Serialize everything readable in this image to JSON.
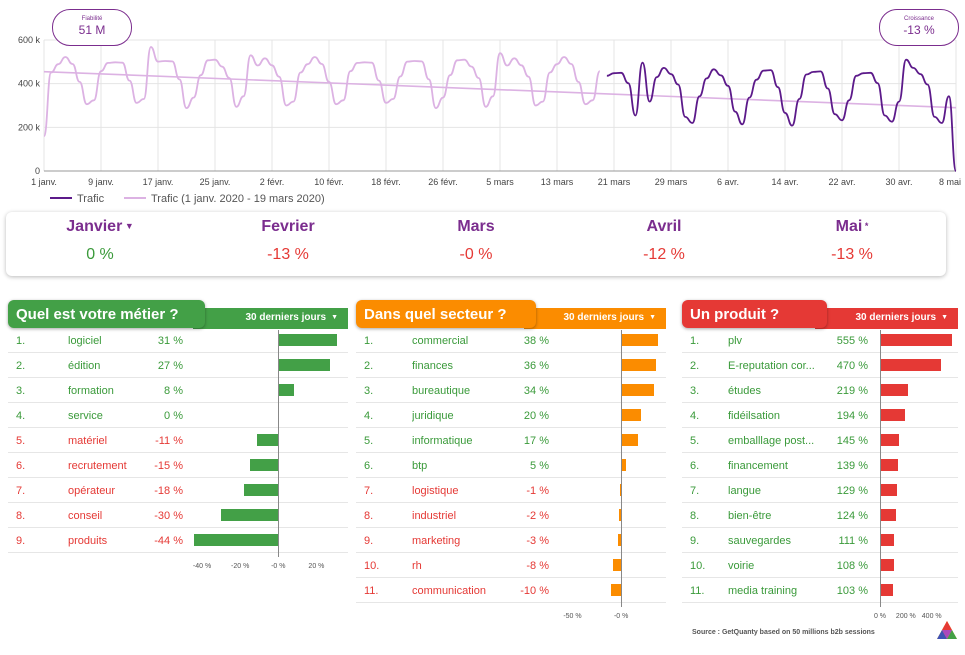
{
  "kpis": {
    "left": {
      "label": "Fiabilité",
      "value": "51 M"
    },
    "right": {
      "label": "Croissance",
      "value": "-13 %"
    }
  },
  "chart_data": {
    "type": "line",
    "title": "",
    "xlabel": "",
    "ylabel": "",
    "ylim": [
      0,
      600000
    ],
    "y_ticks": [
      "0",
      "200 k",
      "400 k",
      "600 k"
    ],
    "x_tick_labels": [
      "1 janv.",
      "9 janv.",
      "17 janv.",
      "25 janv.",
      "2 févr.",
      "10 févr.",
      "18 févr.",
      "26 févr.",
      "5 mars",
      "13 mars",
      "21 mars",
      "29 mars",
      "6 avr.",
      "14 avr.",
      "22 avr.",
      "30 avr.",
      "8 mai"
    ],
    "x_ticks_day_index": [
      0,
      8,
      16,
      24,
      32,
      40,
      48,
      56,
      64,
      72,
      80,
      88,
      96,
      104,
      112,
      120,
      128
    ],
    "legend": [
      "Trafic",
      "Trafic (1 janv. 2020 - 19 mars 2020)"
    ],
    "colors": {
      "current": "#5c1a8a",
      "history": "#dcb2e3",
      "grid": "#e4e4e4"
    },
    "series": [
      {
        "name": "Trafic (1 janv. 2020 - 19 mars 2020)",
        "x_range_days": [
          0,
          78
        ],
        "weekly_profile": [
          330000,
          445000,
          495000,
          510000,
          490000,
          420000,
          300000
        ],
        "peaks": [
          {
            "day": 15,
            "value": 580000
          },
          {
            "day": 29,
            "value": 530000
          },
          {
            "day": 64,
            "value": 540000
          }
        ],
        "start_value": 160000
      },
      {
        "name": "Trafic",
        "x_range_days": [
          79,
          128
        ],
        "weekly_profile": [
          220000,
          330000,
          430000,
          460000,
          450000,
          390000,
          260000
        ],
        "peaks": [
          {
            "day": 84,
            "value": 490000
          },
          {
            "day": 121,
            "value": 510000
          }
        ],
        "end_value": 0
      },
      {
        "name": "trend",
        "x": [
          0,
          128
        ],
        "values": [
          455000,
          290000
        ]
      }
    ]
  },
  "months": [
    {
      "name": "Janvier",
      "value": "0 %",
      "caret": "▼",
      "sign": "pos"
    },
    {
      "name": "Fevrier",
      "value": "-13 %",
      "caret": "",
      "sign": "neg"
    },
    {
      "name": "Mars",
      "value": "-0 %",
      "caret": "",
      "sign": "neg"
    },
    {
      "name": "Avril",
      "value": "-12 %",
      "caret": "",
      "sign": "neg"
    },
    {
      "name": "Mai",
      "value": "-13 %",
      "caret": "*",
      "sign": "neg"
    }
  ],
  "panels": [
    {
      "title": "Quel est votre métier ?",
      "period": "30 derniers jours",
      "caret": "▼",
      "color": "#43a047",
      "axis_min": -50,
      "axis_max": 35,
      "ticks": [
        -40,
        -20,
        0,
        20
      ],
      "tick_labels": [
        "-40 %",
        "-20 %",
        "-0 %",
        "20 %"
      ],
      "rows": [
        {
          "rank": "1.",
          "label": "logiciel",
          "pct": "31 %",
          "value": 31
        },
        {
          "rank": "2.",
          "label": "édition",
          "pct": "27 %",
          "value": 27
        },
        {
          "rank": "3.",
          "label": "formation",
          "pct": "8 %",
          "value": 8
        },
        {
          "rank": "4.",
          "label": "service",
          "pct": "0 %",
          "value": 0
        },
        {
          "rank": "5.",
          "label": "matériel",
          "pct": "-11 %",
          "value": -11
        },
        {
          "rank": "6.",
          "label": "recrutement",
          "pct": "-15 %",
          "value": -15
        },
        {
          "rank": "7.",
          "label": "opérateur",
          "pct": "-18 %",
          "value": -18
        },
        {
          "rank": "8.",
          "label": "conseil",
          "pct": "-30 %",
          "value": -30
        },
        {
          "rank": "9.",
          "label": "produits",
          "pct": "-44 %",
          "value": -44
        }
      ]
    },
    {
      "title": "Dans quel secteur ?",
      "period": "30 derniers jours",
      "caret": "▼",
      "color": "#fb8c00",
      "axis_min": -70,
      "axis_max": 44,
      "ticks": [
        -50,
        0
      ],
      "tick_labels": [
        "-50 %",
        "-0 %"
      ],
      "rows": [
        {
          "rank": "1.",
          "label": "commercial",
          "pct": "38 %",
          "value": 38
        },
        {
          "rank": "2.",
          "label": "finances",
          "pct": "36 %",
          "value": 36
        },
        {
          "rank": "3.",
          "label": "bureautique",
          "pct": "34 %",
          "value": 34
        },
        {
          "rank": "4.",
          "label": "juridique",
          "pct": "20 %",
          "value": 20
        },
        {
          "rank": "5.",
          "label": "informatique",
          "pct": "17 %",
          "value": 17
        },
        {
          "rank": "6.",
          "label": "btp",
          "pct": "5 %",
          "value": 5
        },
        {
          "rank": "7.",
          "label": "logistique",
          "pct": "-1 %",
          "value": -1
        },
        {
          "rank": "8.",
          "label": "industriel",
          "pct": "-2 %",
          "value": -2
        },
        {
          "rank": "9.",
          "label": "marketing",
          "pct": "-3 %",
          "value": -3
        },
        {
          "rank": "10.",
          "label": "rh",
          "pct": "-8 %",
          "value": -8
        },
        {
          "rank": "11.",
          "label": "communication",
          "pct": "-10 %",
          "value": -10
        }
      ]
    },
    {
      "title": "Un produit ?",
      "period": "30 derniers jours",
      "caret": "▼",
      "color": "#e53935",
      "axis_min": 0,
      "axis_max": 580,
      "ticks": [
        0,
        200,
        400
      ],
      "tick_labels": [
        "0 %",
        "200 %",
        "400 %"
      ],
      "rows": [
        {
          "rank": "1.",
          "label": "plv",
          "pct": "555 %",
          "value": 555
        },
        {
          "rank": "2.",
          "label": "E-reputation cor...",
          "pct": "470 %",
          "value": 470
        },
        {
          "rank": "3.",
          "label": "études",
          "pct": "219 %",
          "value": 219
        },
        {
          "rank": "4.",
          "label": "fidéilsation",
          "pct": "194 %",
          "value": 194
        },
        {
          "rank": "5.",
          "label": "emballlage post...",
          "pct": "145 %",
          "value": 145
        },
        {
          "rank": "6.",
          "label": "financement",
          "pct": "139 %",
          "value": 139
        },
        {
          "rank": "7.",
          "label": "langue",
          "pct": "129 %",
          "value": 129
        },
        {
          "rank": "8.",
          "label": "bien-être",
          "pct": "124 %",
          "value": 124
        },
        {
          "rank": "9.",
          "label": "sauvegardes",
          "pct": "111 %",
          "value": 111
        },
        {
          "rank": "10.",
          "label": "voirie",
          "pct": "108 %",
          "value": 108
        },
        {
          "rank": "11.",
          "label": "media training",
          "pct": "103 %",
          "value": 103
        }
      ]
    }
  ],
  "source": "Source : GetQuanty based on 50 millions b2b sessions"
}
